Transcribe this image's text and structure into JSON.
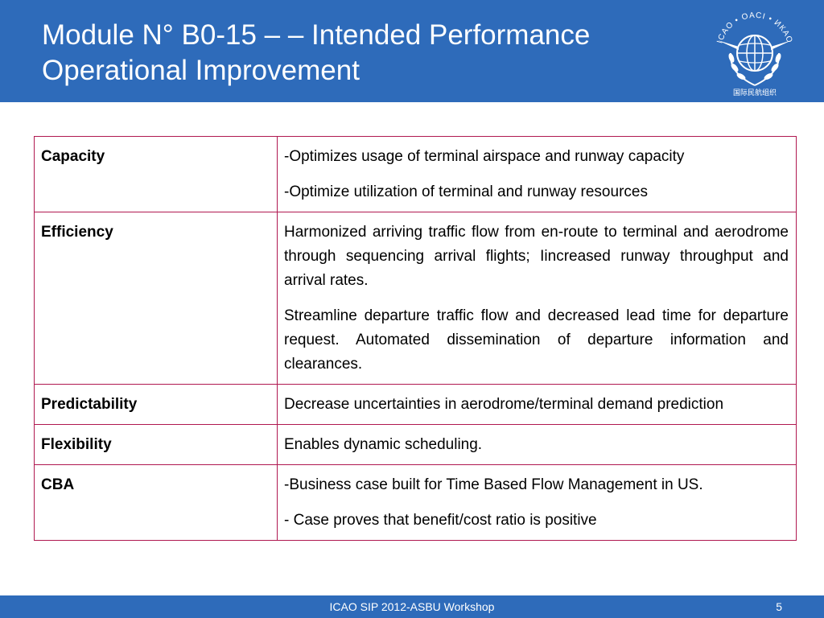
{
  "slide": {
    "title": "Module N° B0-15 – – Intended Performance Operational Improvement",
    "logo_name": "icao-emblem-icon",
    "logo_text": "ICAO • OACI • ИКАО"
  },
  "table": {
    "rows": [
      {
        "label": "Capacity",
        "paragraphs": [
          "-Optimizes usage of terminal airspace and runway capacity",
          "-Optimize utilization of terminal and runway resources"
        ]
      },
      {
        "label": "Efficiency",
        "paragraphs": [
          "Harmonized arriving traffic flow from en-route to terminal and aerodrome through sequencing arrival flights; Iincreased runway throughput and arrival rates.",
          "Streamline departure traffic flow and decreased lead time for departure request. Automated dissemination of departure information and clearances."
        ]
      },
      {
        "label": "Predictability",
        "paragraphs": [
          "Decrease uncertainties in aerodrome/terminal demand prediction"
        ]
      },
      {
        "label": "Flexibility",
        "paragraphs": [
          "Enables dynamic scheduling."
        ]
      },
      {
        "label": "CBA",
        "paragraphs": [
          "-Business case built for Time Based Flow Management in US.",
          "- Case proves that benefit/cost ratio is positive"
        ]
      }
    ]
  },
  "footer": {
    "text": "ICAO SIP 2012-ASBU Workshop",
    "page_number": "5"
  },
  "colors": {
    "header_bg": "#2e6bba",
    "table_border": "#b01850"
  }
}
